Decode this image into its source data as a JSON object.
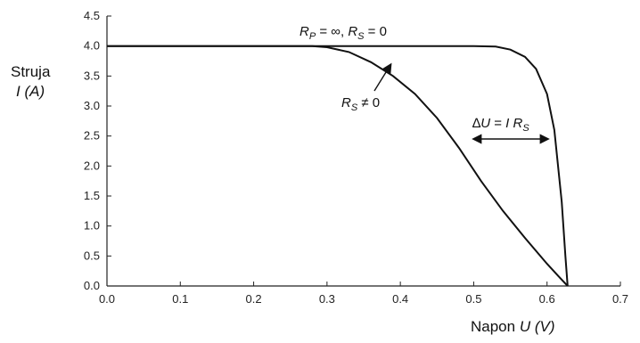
{
  "chart_data": {
    "type": "line",
    "xlabel": {
      "name": "Napon",
      "symbol": "U",
      "unit": "(V)"
    },
    "ylabel": {
      "name": "Struja",
      "symbol": "I",
      "unit": "(A)"
    },
    "xlim": [
      0,
      0.7
    ],
    "ylim": [
      0,
      4.5
    ],
    "xticks": [
      "0.0",
      "0.1",
      "0.2",
      "0.3",
      "0.4",
      "0.5",
      "0.6",
      "0.7"
    ],
    "yticks": [
      "0.0",
      "0.5",
      "1.0",
      "1.5",
      "2.0",
      "2.5",
      "3.0",
      "3.5",
      "4.0",
      "4.5"
    ],
    "grid": false,
    "series": [
      {
        "id": "ideal",
        "x": [
          0,
          0.28,
          0.5,
          0.53,
          0.55,
          0.57,
          0.585,
          0.6,
          0.61,
          0.62,
          0.625,
          0.628
        ],
        "y": [
          4.0,
          4.0,
          4.0,
          3.99,
          3.94,
          3.82,
          3.62,
          3.2,
          2.6,
          1.4,
          0.5,
          0.0
        ]
      },
      {
        "id": "series-resistance",
        "x": [
          0,
          0.28,
          0.3,
          0.33,
          0.36,
          0.39,
          0.42,
          0.45,
          0.48,
          0.51,
          0.54,
          0.57,
          0.6,
          0.615,
          0.628
        ],
        "y": [
          4.0,
          4.0,
          3.98,
          3.9,
          3.73,
          3.5,
          3.2,
          2.8,
          2.3,
          1.75,
          1.25,
          0.8,
          0.37,
          0.17,
          0.0
        ]
      }
    ],
    "annotations": {
      "ideal_label": {
        "R": "R",
        "Rsub": "P",
        "rest1": " = ∞, ",
        "R2": "R",
        "R2sub": "S",
        "rest2": " = 0"
      },
      "rs_label": {
        "R": "R",
        "Rsub": "S",
        "rest": " ≠ 0"
      },
      "delta_label": {
        "delta": "∆",
        "U": "U",
        "eq": " = ",
        "I": "I",
        "R": " R",
        "Rsub": "S"
      }
    }
  }
}
